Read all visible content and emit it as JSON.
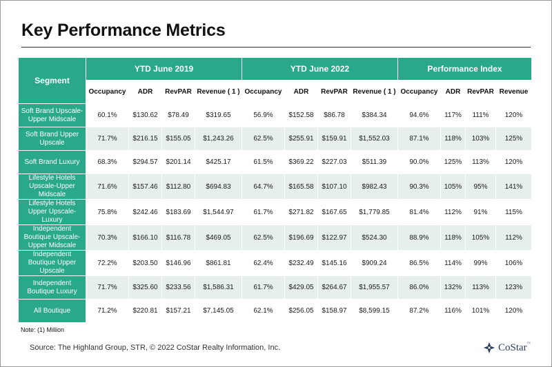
{
  "title": "Key Performance Metrics",
  "table": {
    "segment_header": "Segment",
    "groups": [
      "YTD June 2019",
      "YTD June 2022",
      "Performance Index"
    ],
    "subheaders": [
      "Occupancy",
      "ADR",
      "RevPAR",
      "Revenue ( 1 )",
      "Occupancy",
      "ADR",
      "RevPAR",
      "Revenue ( 1 )",
      "Occupancy",
      "ADR",
      "RevPAR",
      "Revenue"
    ],
    "rows": [
      {
        "segment": "Soft Brand Upscale-Upper Midscale",
        "values": [
          "60.1%",
          "$130.62",
          "$78.49",
          "$319.65",
          "56.9%",
          "$152.58",
          "$86.78",
          "$384.34",
          "94.6%",
          "117%",
          "111%",
          "120%"
        ]
      },
      {
        "segment": "Soft Brand Upper Upscale",
        "values": [
          "71.7%",
          "$216.15",
          "$155.05",
          "$1,243.26",
          "62.5%",
          "$255.91",
          "$159.91",
          "$1,552.03",
          "87.1%",
          "118%",
          "103%",
          "125%"
        ]
      },
      {
        "segment": "Soft Brand Luxury",
        "values": [
          "68.3%",
          "$294.57",
          "$201.14",
          "$425.17",
          "61.5%",
          "$369.22",
          "$227.03",
          "$511.39",
          "90.0%",
          "125%",
          "113%",
          "120%"
        ]
      },
      {
        "segment": "Lifestyle Hotels Upscale-Upper Midscale",
        "values": [
          "71.6%",
          "$157.46",
          "$112.80",
          "$694.83",
          "64.7%",
          "$165.58",
          "$107.10",
          "$982.43",
          "90.3%",
          "105%",
          "95%",
          "141%"
        ]
      },
      {
        "segment": "Lifestyle Hotels Upper Upscale-Luxury",
        "values": [
          "75.8%",
          "$242.46",
          "$183.69",
          "$1,544.97",
          "61.7%",
          "$271.82",
          "$167.65",
          "$1,779.85",
          "81.4%",
          "112%",
          "91%",
          "115%"
        ]
      },
      {
        "segment": "Independent Boutique Upscale-Upper Midscale",
        "values": [
          "70.3%",
          "$166.10",
          "$116.78",
          "$469.05",
          "62.5%",
          "$196.69",
          "$122.97",
          "$524.30",
          "88.9%",
          "118%",
          "105%",
          "112%"
        ]
      },
      {
        "segment": "Independent Boutique Upper Upscale",
        "values": [
          "72.2%",
          "$203.50",
          "$146.96",
          "$861.81",
          "62.4%",
          "$232.49",
          "$145.16",
          "$909.24",
          "86.5%",
          "114%",
          "99%",
          "106%"
        ]
      },
      {
        "segment": "Independent Boutique Luxury",
        "values": [
          "71.7%",
          "$325.60",
          "$233.56",
          "$1,586.31",
          "61.7%",
          "$429.05",
          "$264.67",
          "$1,955.57",
          "86.0%",
          "132%",
          "113%",
          "123%"
        ]
      },
      {
        "segment": "All Boutique",
        "values": [
          "71.2%",
          "$220.81",
          "$157.21",
          "$7,145.05",
          "62.1%",
          "$256.05",
          "$158.97",
          "$8,599.15",
          "87.2%",
          "116%",
          "101%",
          "120%"
        ]
      }
    ]
  },
  "note": "Note: (1) Million",
  "source": "Source: The Highland Group, STR, © 2022  CoStar Realty Information, Inc.",
  "logo": {
    "text": "CoStar",
    "tm": "™",
    "icon": "costar-logo-icon"
  },
  "colors": {
    "header_green": "#2aa88a",
    "row_alt": "#e7efeb"
  }
}
